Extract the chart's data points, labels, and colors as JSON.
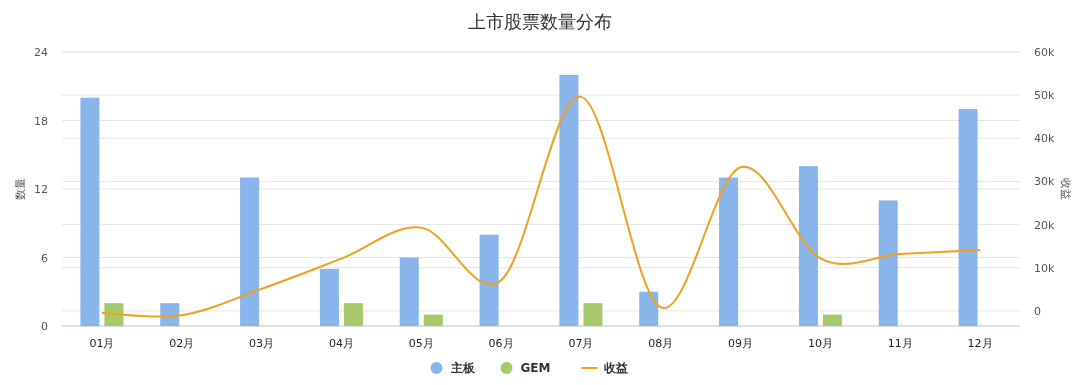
{
  "chart_data": {
    "type": "bar",
    "title": "上市股票数量分布",
    "ylabel": "数量",
    "y2label": "收益",
    "categories": [
      "01月",
      "02月",
      "03月",
      "04月",
      "05月",
      "06月",
      "07月",
      "08月",
      "09月",
      "10月",
      "11月",
      "12月"
    ],
    "series": [
      {
        "name": "主板",
        "color": "#88b5ea",
        "values": [
          20,
          2,
          13,
          5,
          6,
          8,
          22,
          3,
          13,
          14,
          11,
          19
        ]
      },
      {
        "name": "GEM",
        "color": "#a8c96b",
        "values": [
          2,
          0,
          0,
          2,
          1,
          0,
          2,
          0,
          0,
          1,
          0,
          0
        ]
      },
      {
        "name": "收益",
        "type": "line",
        "axis": "y2",
        "color": "#f0a01c",
        "values": [
          -500,
          -1000,
          5100,
          12100,
          19300,
          7100,
          49600,
          800,
          33300,
          12200,
          13200,
          14100
        ]
      }
    ],
    "ylim": [
      0,
      24
    ],
    "yticks": [
      0,
      6,
      12,
      18,
      24
    ],
    "y2lim": [
      -3500,
      60000
    ],
    "y2ticks": [
      0,
      {
        "value": 10000,
        "label": "10k"
      },
      {
        "value": 20000,
        "label": "20k"
      },
      {
        "value": 30000,
        "label": "30k"
      },
      {
        "value": 40000,
        "label": "40k"
      },
      {
        "value": 50000,
        "label": "50k"
      },
      {
        "value": 60000,
        "label": "60k"
      }
    ],
    "grid": true,
    "legend": "bottom",
    "marker": "none"
  }
}
